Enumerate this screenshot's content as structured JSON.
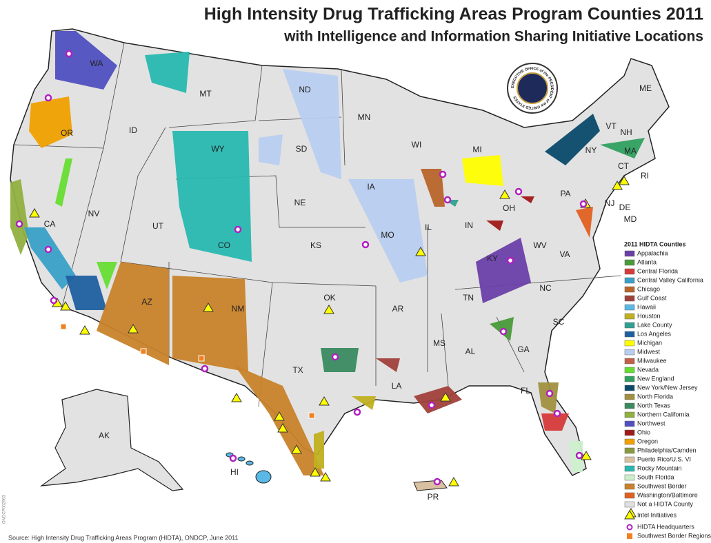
{
  "title": "High Intensity Drug Trafficking Areas Program Counties 2011",
  "subtitle": "with Intelligence and Information Sharing Initiative Locations",
  "seal_text": "EXECUTIVE OFFICE of the PRESIDENT of the UNITED STATES",
  "state_labels": [
    "WA",
    "MT",
    "ND",
    "MN",
    "ME",
    "OR",
    "ID",
    "SD",
    "WY",
    "WI",
    "MI",
    "VT",
    "NH",
    "NY",
    "MA",
    "CT",
    "RI",
    "NE",
    "IA",
    "PA",
    "NJ",
    "DE",
    "MD",
    "NV",
    "CA",
    "UT",
    "CO",
    "KS",
    "IL",
    "IN",
    "OH",
    "MO",
    "WV",
    "VA",
    "KY",
    "NC",
    "TN",
    "OK",
    "AR",
    "SC",
    "AZ",
    "NM",
    "MS",
    "AL",
    "GA",
    "TX",
    "LA",
    "FL",
    "AK",
    "HI",
    "PR"
  ],
  "legend": {
    "title": "2011 HIDTA Counties",
    "items": [
      {
        "name": "Appalachia",
        "color": "#6a3fa8"
      },
      {
        "name": "Atlanta",
        "color": "#4a9a3a"
      },
      {
        "name": "Central Florida",
        "color": "#d63a3a"
      },
      {
        "name": "Central Valley California",
        "color": "#3aa0c8"
      },
      {
        "name": "Chicago",
        "color": "#b8642a"
      },
      {
        "name": "Gulf Coast",
        "color": "#a0403a"
      },
      {
        "name": "Hawaii",
        "color": "#5ab8e6"
      },
      {
        "name": "Houston",
        "color": "#c0b020"
      },
      {
        "name": "Lake County",
        "color": "#30a090"
      },
      {
        "name": "Los Angeles",
        "color": "#1f5fa0"
      },
      {
        "name": "Michigan",
        "color": "#ffff00"
      },
      {
        "name": "Midwest",
        "color": "#b8cef0"
      },
      {
        "name": "Milwaukee",
        "color": "#c0604a"
      },
      {
        "name": "Nevada",
        "color": "#66dd33"
      },
      {
        "name": "New England",
        "color": "#30a060"
      },
      {
        "name": "New York/New Jersey",
        "color": "#0a4a6a"
      },
      {
        "name": "North Florida",
        "color": "#a09040"
      },
      {
        "name": "North Texas",
        "color": "#3a8a60"
      },
      {
        "name": "Northern California",
        "color": "#90b040"
      },
      {
        "name": "Northwest",
        "color": "#5050c0"
      },
      {
        "name": "Ohio",
        "color": "#a01818"
      },
      {
        "name": "Oregon",
        "color": "#f0a000"
      },
      {
        "name": "Philadelphia/Camden",
        "color": "#889a40"
      },
      {
        "name": "Puerto Rico/U.S. VI",
        "color": "#d8c0a0"
      },
      {
        "name": "Rocky Mountain",
        "color": "#28b8b0"
      },
      {
        "name": "South Florida",
        "color": "#ccf0cc"
      },
      {
        "name": "Southwest Border",
        "color": "#c8822a"
      },
      {
        "name": "Washington/Baltimore",
        "color": "#e06020"
      },
      {
        "name": "Not a HIDTA County",
        "color": "#e0e0e0"
      }
    ],
    "symbols": [
      "Intel Initiatives",
      "HIDTA Headquarters",
      "Southwest Border Regions"
    ]
  },
  "source": "Source: High Intensity Drug Trafficking Areas Program (HIDTA), ONDCP, June 2011",
  "doc_id": "ONDCP002963"
}
